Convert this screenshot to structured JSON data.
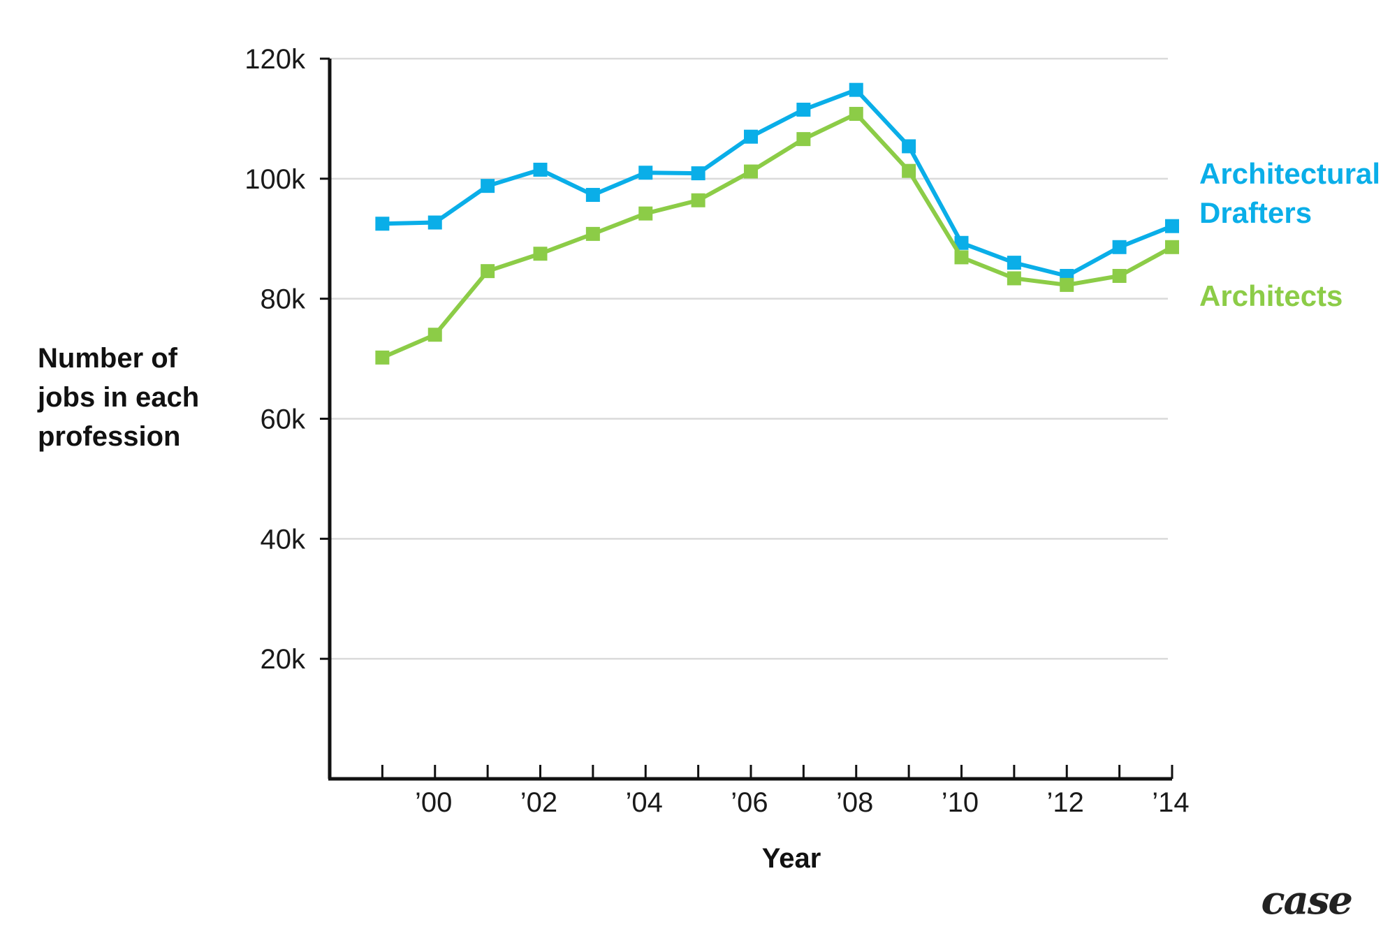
{
  "chart_data": {
    "type": "line",
    "xlabel": "Year",
    "ylabel": [
      "Number of",
      "jobs in each",
      "profession"
    ],
    "x": [
      1999,
      2000,
      2001,
      2002,
      2003,
      2004,
      2005,
      2006,
      2007,
      2008,
      2009,
      2010,
      2011,
      2012,
      2013,
      2014
    ],
    "xtick_labels": [
      {
        "x": 2000,
        "label": "’00"
      },
      {
        "x": 2002,
        "label": "’02"
      },
      {
        "x": 2004,
        "label": "’04"
      },
      {
        "x": 2006,
        "label": "’06"
      },
      {
        "x": 2008,
        "label": "’08"
      },
      {
        "x": 2010,
        "label": "’10"
      },
      {
        "x": 2012,
        "label": "’12"
      },
      {
        "x": 2014,
        "label": "’14"
      }
    ],
    "yticks": [
      {
        "value": 20000,
        "label": "20k"
      },
      {
        "value": 40000,
        "label": "40k"
      },
      {
        "value": 60000,
        "label": "60k"
      },
      {
        "value": 80000,
        "label": "80k"
      },
      {
        "value": 100000,
        "label": "100k"
      },
      {
        "value": 120000,
        "label": "120k"
      }
    ],
    "ylim": [
      0,
      120000
    ],
    "xlim": [
      1998,
      2014
    ],
    "grid": "horizontal",
    "series": [
      {
        "name": [
          "Architectural",
          "Drafters"
        ],
        "color": "#0aaee8",
        "values": [
          92500,
          92700,
          98800,
          101500,
          97300,
          101000,
          100900,
          107000,
          111500,
          114800,
          105400,
          89300,
          86000,
          83800,
          88600,
          92100
        ]
      },
      {
        "name": [
          "Architects"
        ],
        "color": "#8ccc47",
        "values": [
          70200,
          74000,
          84600,
          87500,
          90800,
          94200,
          96400,
          101200,
          106600,
          110800,
          101300,
          86900,
          83400,
          82300,
          83800,
          88600
        ]
      }
    ],
    "legend_placement": "right"
  },
  "logo": {
    "text": "case"
  }
}
